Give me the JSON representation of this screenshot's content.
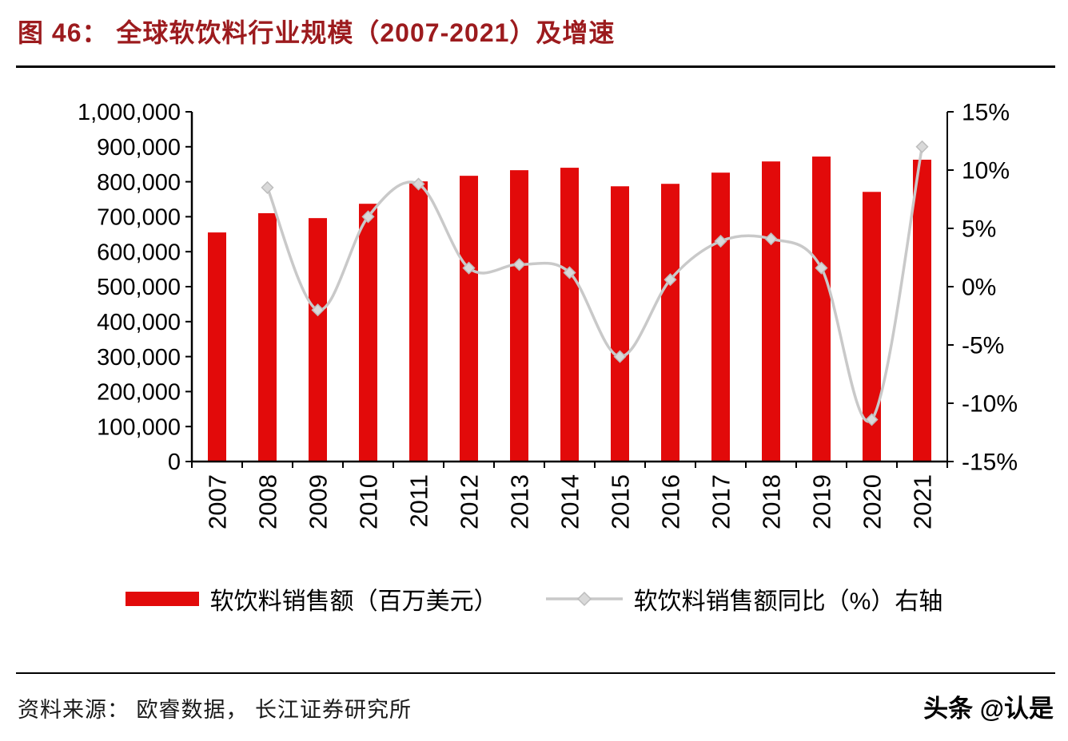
{
  "title": "图  46：  全球软饮料行业规模（2007-2021）及增速",
  "source": "资料来源：  欧睿数据，  长江证券研究所",
  "watermark": "头条 @认是",
  "colors": {
    "title": "#9c1b1e",
    "bar": "#e20a0a",
    "line": "#c9c9c9",
    "marker_fill": "#d9d9d9",
    "marker_stroke": "#bdbdbd",
    "axis": "#000000",
    "text": "#000000"
  },
  "legend": {
    "bar_label": "软饮料销售额（百万美元）",
    "line_label": "软饮料销售额同比（%）右轴"
  },
  "chart_data": {
    "type": "bar+line",
    "title": "全球软饮料行业规模（2007-2021）及增速",
    "categories": [
      "2007",
      "2008",
      "2009",
      "2010",
      "2011",
      "2012",
      "2013",
      "2014",
      "2015",
      "2016",
      "2017",
      "2018",
      "2019",
      "2020",
      "2021"
    ],
    "series": [
      {
        "name": "软饮料销售额（百万美元）",
        "type": "bar",
        "axis": "left",
        "values": [
          655000,
          710000,
          696000,
          737000,
          801000,
          817000,
          833000,
          840000,
          787000,
          794000,
          826000,
          858000,
          872000,
          771000,
          863000
        ]
      },
      {
        "name": "软饮料销售额同比（%）右轴",
        "type": "line",
        "axis": "right",
        "values": [
          null,
          8.5,
          -2.0,
          6.0,
          8.8,
          1.6,
          1.9,
          1.2,
          -6.0,
          0.6,
          3.9,
          4.1,
          1.6,
          -11.4,
          12.0
        ]
      }
    ],
    "left_axis": {
      "min": 0,
      "max": 1000000,
      "step": 100000,
      "labels": [
        "0",
        "100,000",
        "200,000",
        "300,000",
        "400,000",
        "500,000",
        "600,000",
        "700,000",
        "800,000",
        "900,000",
        "1,000,000"
      ]
    },
    "right_axis": {
      "min": -15,
      "max": 15,
      "step": 5,
      "labels": [
        "-15%",
        "-10%",
        "-5%",
        "0%",
        "5%",
        "10%",
        "15%"
      ]
    },
    "grid": false,
    "legend_position": "bottom"
  }
}
